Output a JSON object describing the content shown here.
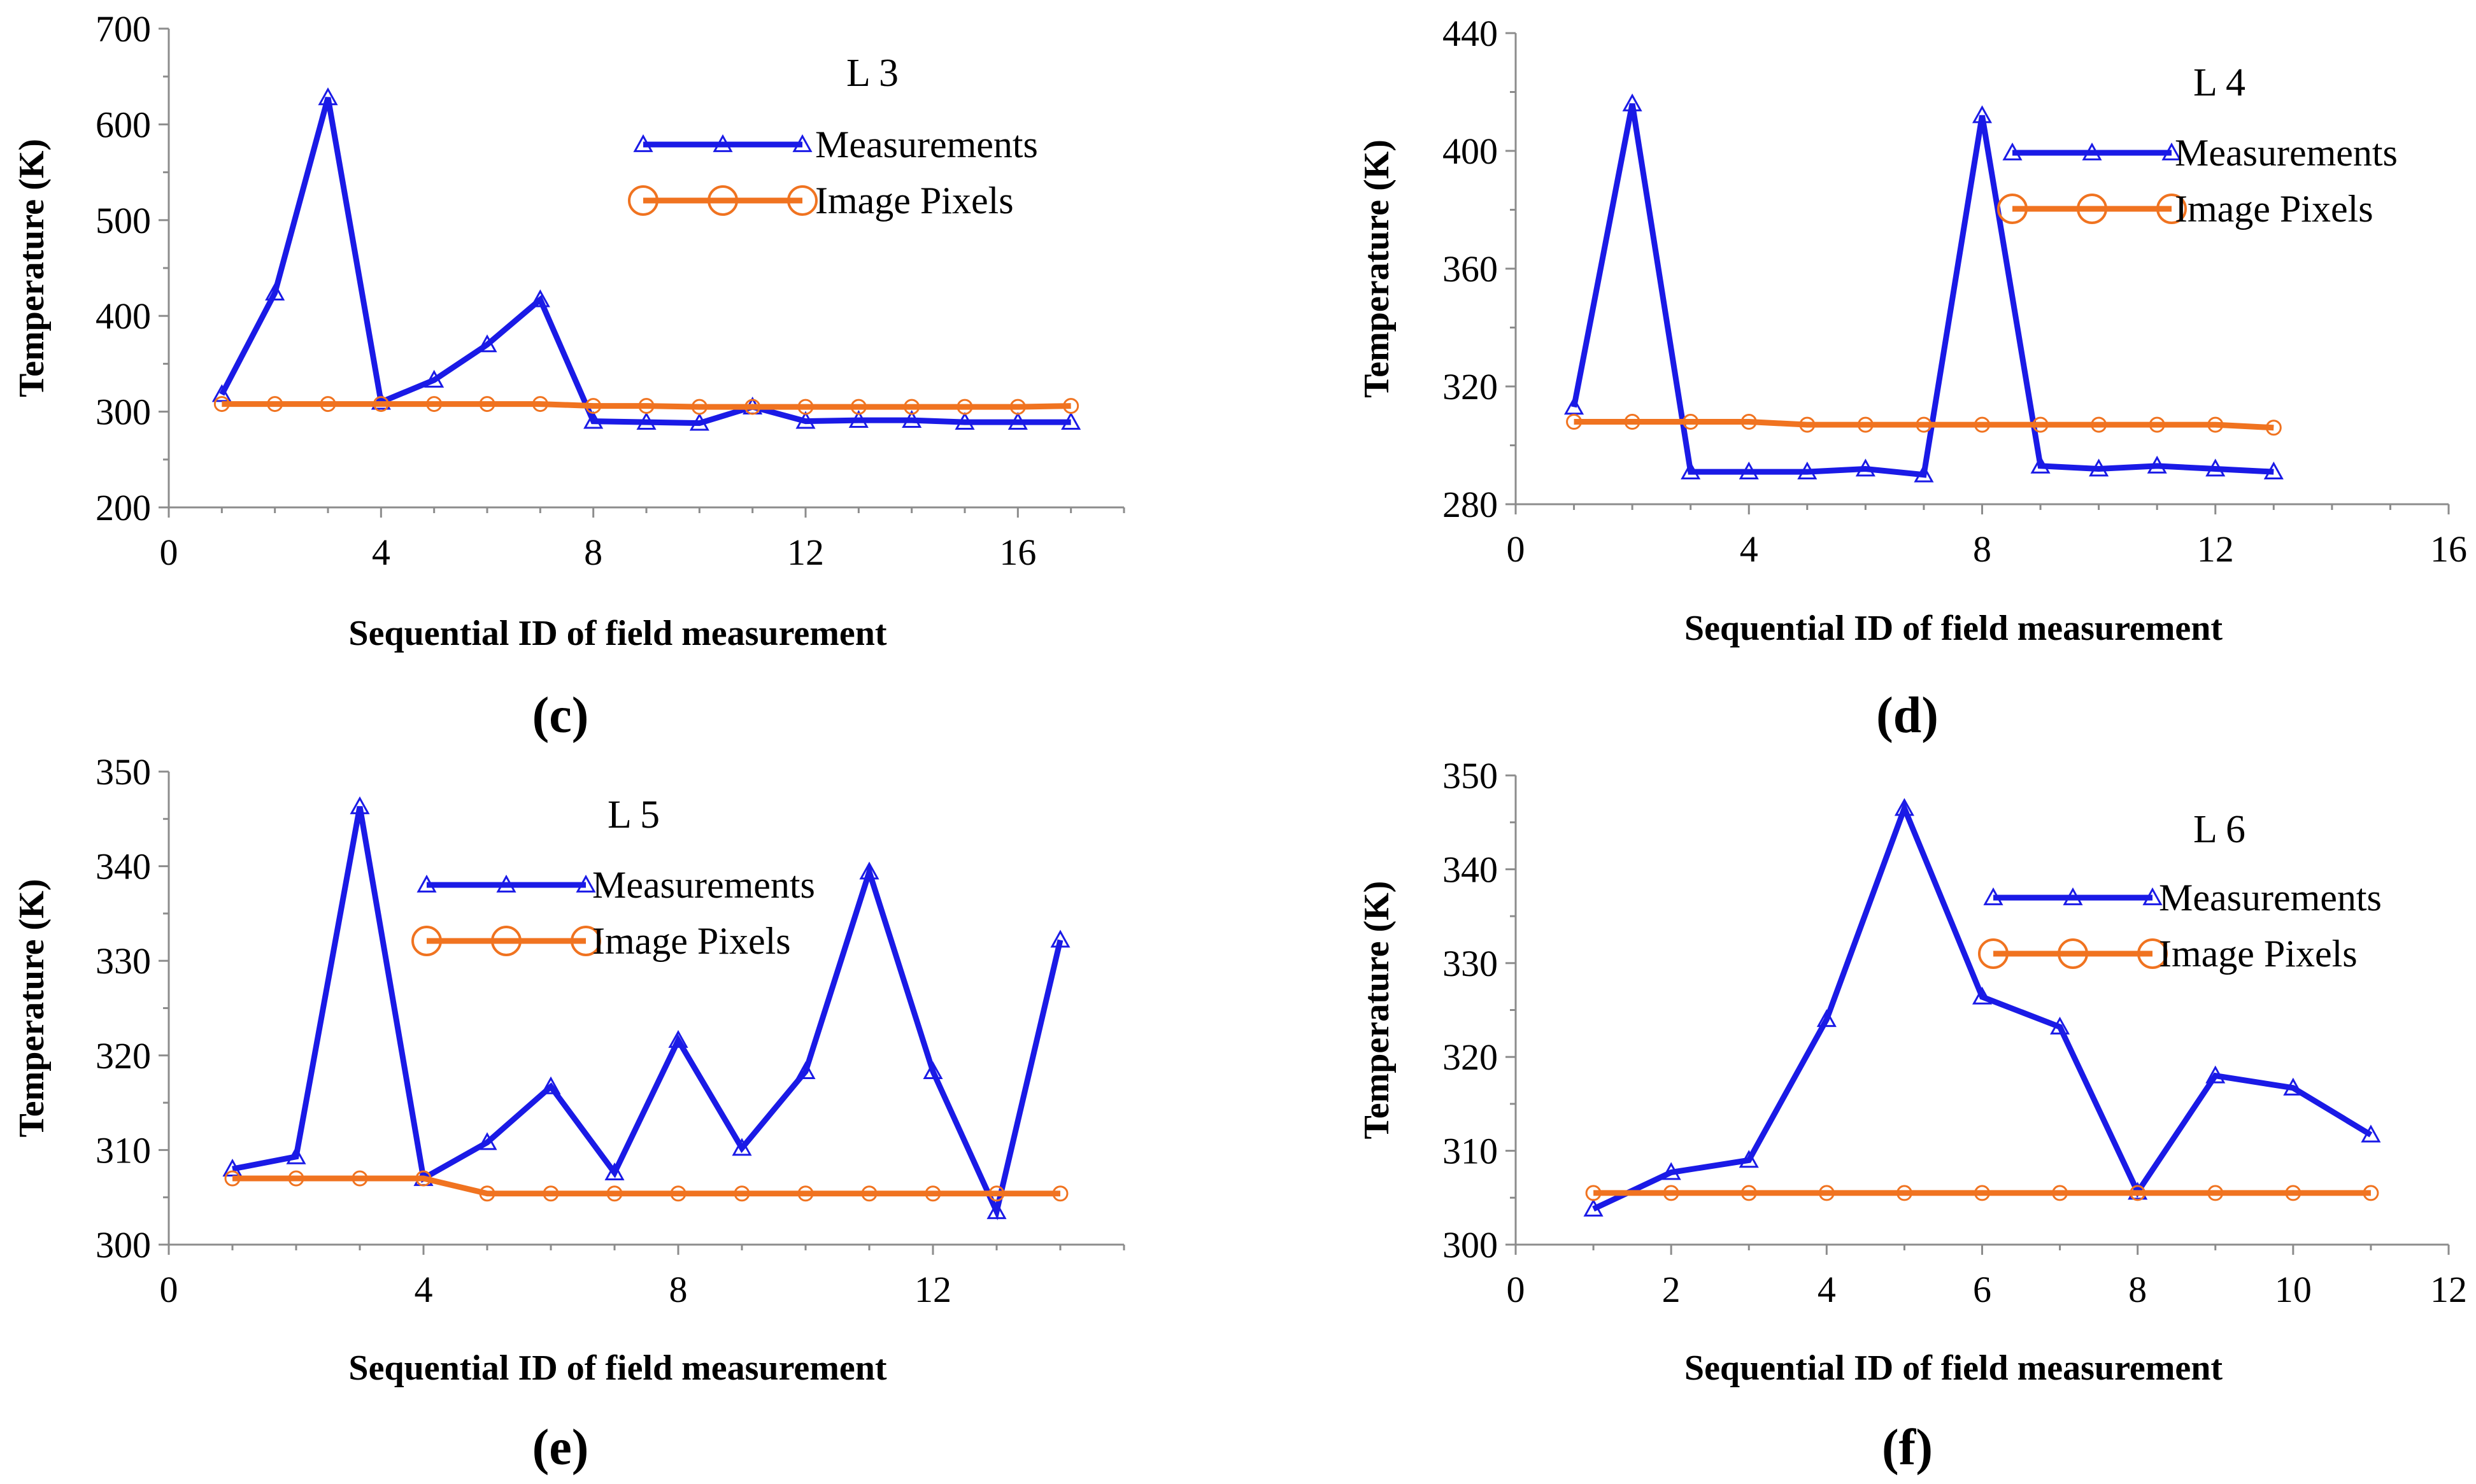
{
  "colors": {
    "measurements": "#1a1ae6",
    "image_pixels": "#f07320"
  },
  "legend": {
    "measurements_label": "Measurements",
    "pixels_label": "Image Pixels"
  },
  "chart_data": [
    {
      "type": "line",
      "panel_label": "(c)",
      "title": "L 3",
      "xlabel": "Sequential ID of field measurement",
      "ylabel": "Temperature (K)",
      "xlim": [
        0,
        18
      ],
      "ylim": [
        200,
        700
      ],
      "xticks": [
        0,
        4,
        8,
        12,
        16
      ],
      "yticks": [
        200,
        300,
        400,
        500,
        600,
        700
      ],
      "series": [
        {
          "name": "Measurements",
          "marker": "triangle",
          "x": [
            1,
            2,
            3,
            4,
            5,
            6,
            7,
            8,
            9,
            10,
            11,
            12,
            13,
            14,
            15,
            16,
            17
          ],
          "y": [
            318,
            424,
            628,
            310,
            333,
            370,
            417,
            290,
            289,
            288,
            305,
            290,
            291,
            291,
            289,
            289,
            289
          ]
        },
        {
          "name": "Image Pixels",
          "marker": "circle",
          "x": [
            1,
            2,
            3,
            4,
            5,
            6,
            7,
            8,
            9,
            10,
            11,
            12,
            13,
            14,
            15,
            16,
            17
          ],
          "y": [
            308,
            308,
            308,
            308,
            308,
            308,
            308,
            306,
            306,
            305,
            305,
            305,
            305,
            305,
            305,
            305,
            306
          ]
        }
      ]
    },
    {
      "type": "line",
      "panel_label": "(d)",
      "title": "L 4",
      "xlabel": "Sequential ID of field measurement",
      "ylabel": "Temperature (K)",
      "xlim": [
        0,
        16
      ],
      "ylim": [
        280,
        440
      ],
      "xticks": [
        0,
        4,
        8,
        12,
        16
      ],
      "yticks": [
        280,
        320,
        360,
        400,
        440
      ],
      "series": [
        {
          "name": "Measurements",
          "marker": "triangle",
          "x": [
            1,
            2,
            3,
            4,
            5,
            6,
            7,
            8,
            9,
            10,
            11,
            12,
            13
          ],
          "y": [
            313,
            416,
            291,
            291,
            291,
            292,
            290,
            412,
            293,
            292,
            293,
            292,
            291
          ]
        },
        {
          "name": "Image Pixels",
          "marker": "circle",
          "x": [
            1,
            2,
            3,
            4,
            5,
            6,
            7,
            8,
            9,
            10,
            11,
            12,
            13
          ],
          "y": [
            308,
            308,
            308,
            308,
            307,
            307,
            307,
            307,
            307,
            307,
            307,
            307,
            306
          ]
        }
      ]
    },
    {
      "type": "line",
      "panel_label": "(e)",
      "title": "L 5",
      "xlabel": "Sequential ID of field measurement",
      "ylabel": "Temperature (K)",
      "xlim": [
        0,
        15
      ],
      "ylim": [
        300,
        350
      ],
      "xticks": [
        0,
        4,
        8,
        12
      ],
      "yticks": [
        300,
        310,
        320,
        330,
        340,
        350
      ],
      "series": [
        {
          "name": "Measurements",
          "marker": "triangle",
          "x": [
            1,
            2,
            3,
            4,
            5,
            6,
            7,
            8,
            9,
            10,
            11,
            12,
            13,
            14
          ],
          "y": [
            308,
            309.3,
            346.3,
            307,
            310.8,
            316.7,
            307.6,
            321.6,
            310.2,
            318.3,
            339.4,
            318.3,
            303.5,
            332.2
          ]
        },
        {
          "name": "Image Pixels",
          "marker": "circle",
          "x": [
            1,
            2,
            3,
            4,
            5,
            6,
            7,
            8,
            9,
            10,
            11,
            12,
            13,
            14
          ],
          "y": [
            307,
            307,
            307,
            307,
            305.4,
            305.4,
            305.4,
            305.4,
            305.4,
            305.4,
            305.4,
            305.4,
            305.4,
            305.4
          ]
        }
      ]
    },
    {
      "type": "line",
      "panel_label": "(f)",
      "title": "L 6",
      "xlabel": "Sequential ID of field measurement",
      "ylabel": "Temperature (K)",
      "xlim": [
        0,
        12
      ],
      "ylim": [
        300,
        350
      ],
      "xticks": [
        0,
        2,
        4,
        6,
        8,
        10,
        12
      ],
      "yticks": [
        300,
        310,
        320,
        330,
        340,
        350
      ],
      "series": [
        {
          "name": "Measurements",
          "marker": "triangle",
          "x": [
            1,
            2,
            3,
            4,
            5,
            6,
            7,
            8,
            9,
            10,
            11
          ],
          "y": [
            303.8,
            307.7,
            309,
            324,
            346.5,
            326.4,
            323.2,
            305.6,
            318,
            316.7,
            311.7
          ]
        },
        {
          "name": "Image Pixels",
          "marker": "circle",
          "x": [
            1,
            2,
            3,
            4,
            5,
            6,
            7,
            8,
            9,
            10,
            11
          ],
          "y": [
            305.5,
            305.5,
            305.5,
            305.5,
            305.5,
            305.5,
            305.5,
            305.5,
            305.5,
            305.5,
            305.5
          ]
        }
      ]
    }
  ]
}
